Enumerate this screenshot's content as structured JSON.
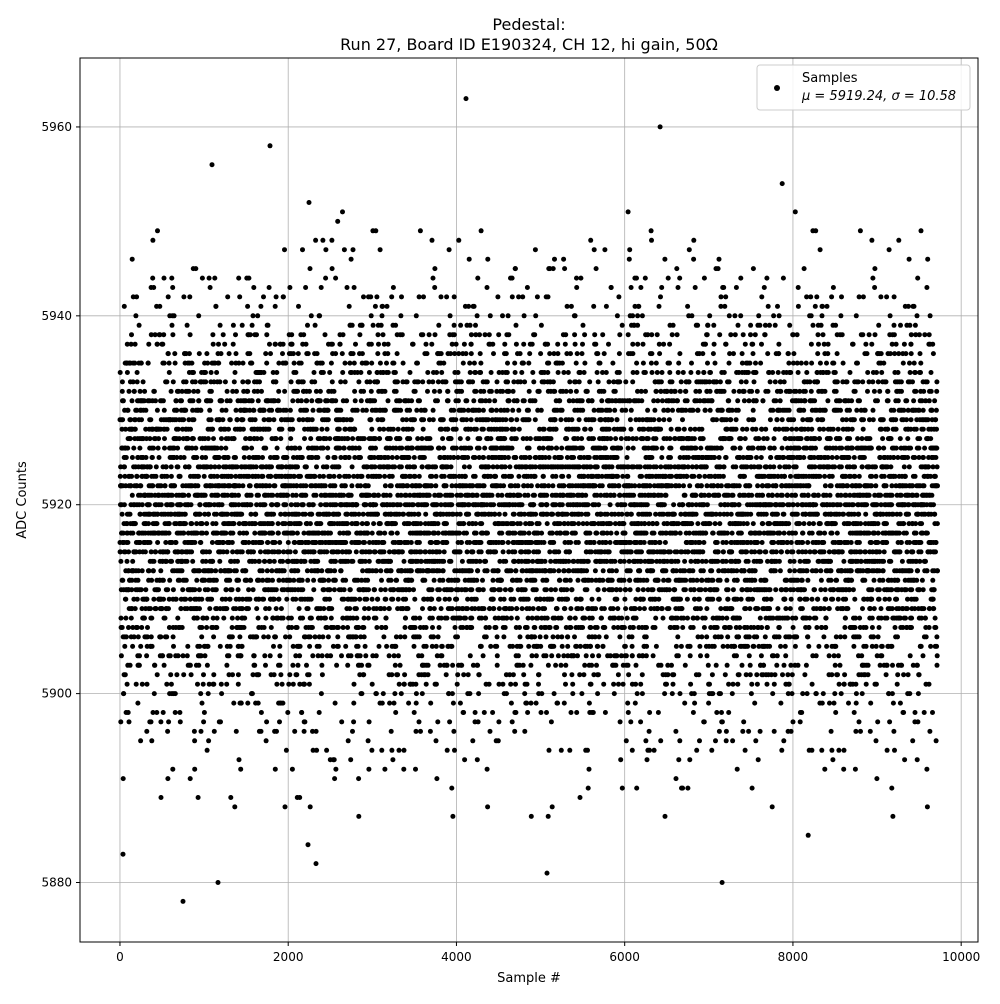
{
  "chart_data": {
    "type": "scatter",
    "title_line1": "Pedestal:",
    "title_line2": "Run 27, Board ID E190324, CH 12, hi gain, 50Ω",
    "xlabel": "Sample #",
    "ylabel": "ADC Counts",
    "xlim": [
      -475,
      10200
    ],
    "ylim": [
      5873.7,
      5967.3
    ],
    "xticks": [
      0,
      2000,
      4000,
      6000,
      8000,
      10000
    ],
    "xtick_labels": [
      "0",
      "2000",
      "4000",
      "6000",
      "8000",
      "10000"
    ],
    "yticks": [
      5880,
      5900,
      5920,
      5940,
      5960
    ],
    "ytick_labels": [
      "5880",
      "5900",
      "5920",
      "5940",
      "5960"
    ],
    "grid": true,
    "legend": {
      "placement": "top-right",
      "series_name": "Samples",
      "stats_label": "μ = 5919.24, σ = 10.58"
    },
    "series": [
      {
        "name": "Samples",
        "color": "#000000",
        "sample_range": [
          0,
          9720
        ],
        "mean": 5919.24,
        "std": 10.58,
        "outliers": [
          {
            "x": 36,
            "y": 5883
          },
          {
            "x": 749,
            "y": 5878
          },
          {
            "x": 1165,
            "y": 5880
          },
          {
            "x": 1094,
            "y": 5956
          },
          {
            "x": 1784,
            "y": 5958
          },
          {
            "x": 2235,
            "y": 5884
          },
          {
            "x": 2247,
            "y": 5952
          },
          {
            "x": 2331,
            "y": 5882
          },
          {
            "x": 4114,
            "y": 5963
          },
          {
            "x": 5077,
            "y": 5881
          },
          {
            "x": 6421,
            "y": 5960
          },
          {
            "x": 7158,
            "y": 5880
          },
          {
            "x": 7872,
            "y": 5954
          },
          {
            "x": 8181,
            "y": 5885
          }
        ]
      }
    ]
  }
}
